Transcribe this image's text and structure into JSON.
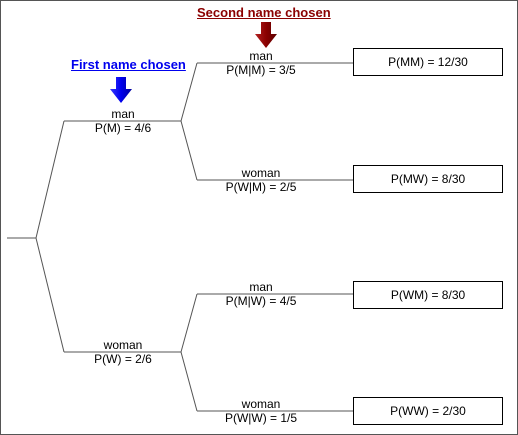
{
  "headers": {
    "first": "First name chosen",
    "second": "Second name chosen"
  },
  "colors": {
    "first": "#0000ee",
    "second": "#8b0000",
    "line": "#555555"
  },
  "first_level": [
    {
      "outcome": "man",
      "prob": "P(M) = 4/6"
    },
    {
      "outcome": "woman",
      "prob": "P(W) = 2/6"
    }
  ],
  "second_level": [
    {
      "outcome": "man",
      "prob": "P(M|M) = 3/5"
    },
    {
      "outcome": "woman",
      "prob": "P(W|M) = 2/5"
    },
    {
      "outcome": "man",
      "prob": "P(M|W) = 4/5"
    },
    {
      "outcome": "woman",
      "prob": "P(W|W) = 1/5"
    }
  ],
  "results": [
    "P(MM) = 12/30",
    "P(MW) = 8/30",
    "P(WM) = 8/30",
    "P(WW) = 2/30"
  ]
}
